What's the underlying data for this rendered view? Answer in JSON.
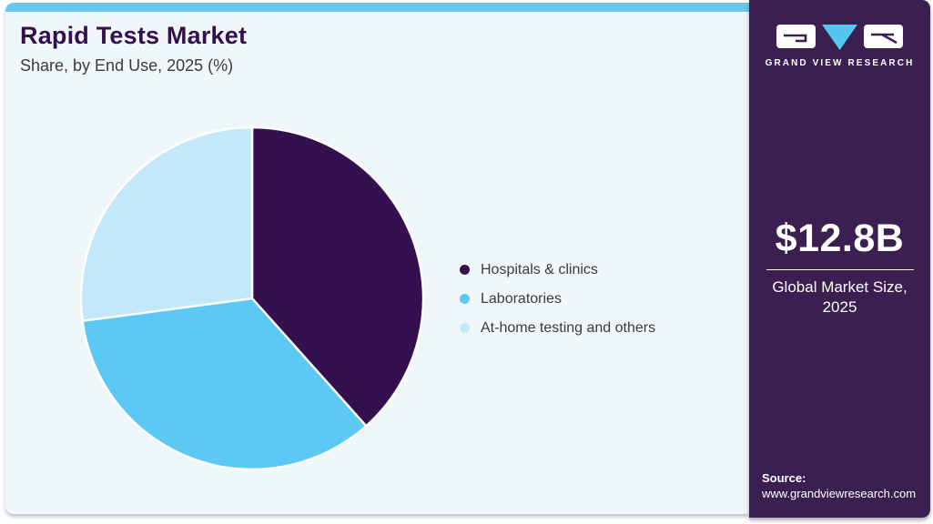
{
  "header": {
    "title": "Rapid Tests Market",
    "subtitle": "Share, by End Use, 2025 (%)"
  },
  "chart_data": {
    "type": "pie",
    "title": "Rapid Tests Market Share, by End Use, 2025 (%)",
    "categories": [
      "Hospitals & clinics",
      "Laboratories",
      "At-home testing and others"
    ],
    "values": [
      38.4,
      34.5,
      27.1
    ],
    "colors": [
      "#35104E",
      "#5CC9F4",
      "#C3E8F9"
    ],
    "start_angle_deg": 0,
    "direction": "clockwise",
    "legend_position": "right",
    "data_labels_shown": false,
    "note": "Slice percentages estimated from arc angles; no numeric labels are shown in the image."
  },
  "sidebar": {
    "logo": {
      "brand": "GRAND VIEW RESEARCH"
    },
    "market_size": {
      "value": "$12.8B",
      "label_line1": "Global Market Size,",
      "label_line2": "2025"
    },
    "source": {
      "label": "Source:",
      "url": "www.grandviewresearch.com"
    }
  },
  "colors": {
    "accent_bar": "#6BC6EF",
    "card_background": "#F0F7FB",
    "sidebar_background": "#3B1F50",
    "title_text": "#33104E",
    "body_text": "#3A3A44",
    "logo_triangle": "#56C6F0",
    "pie_border": "#FFFFFF"
  }
}
